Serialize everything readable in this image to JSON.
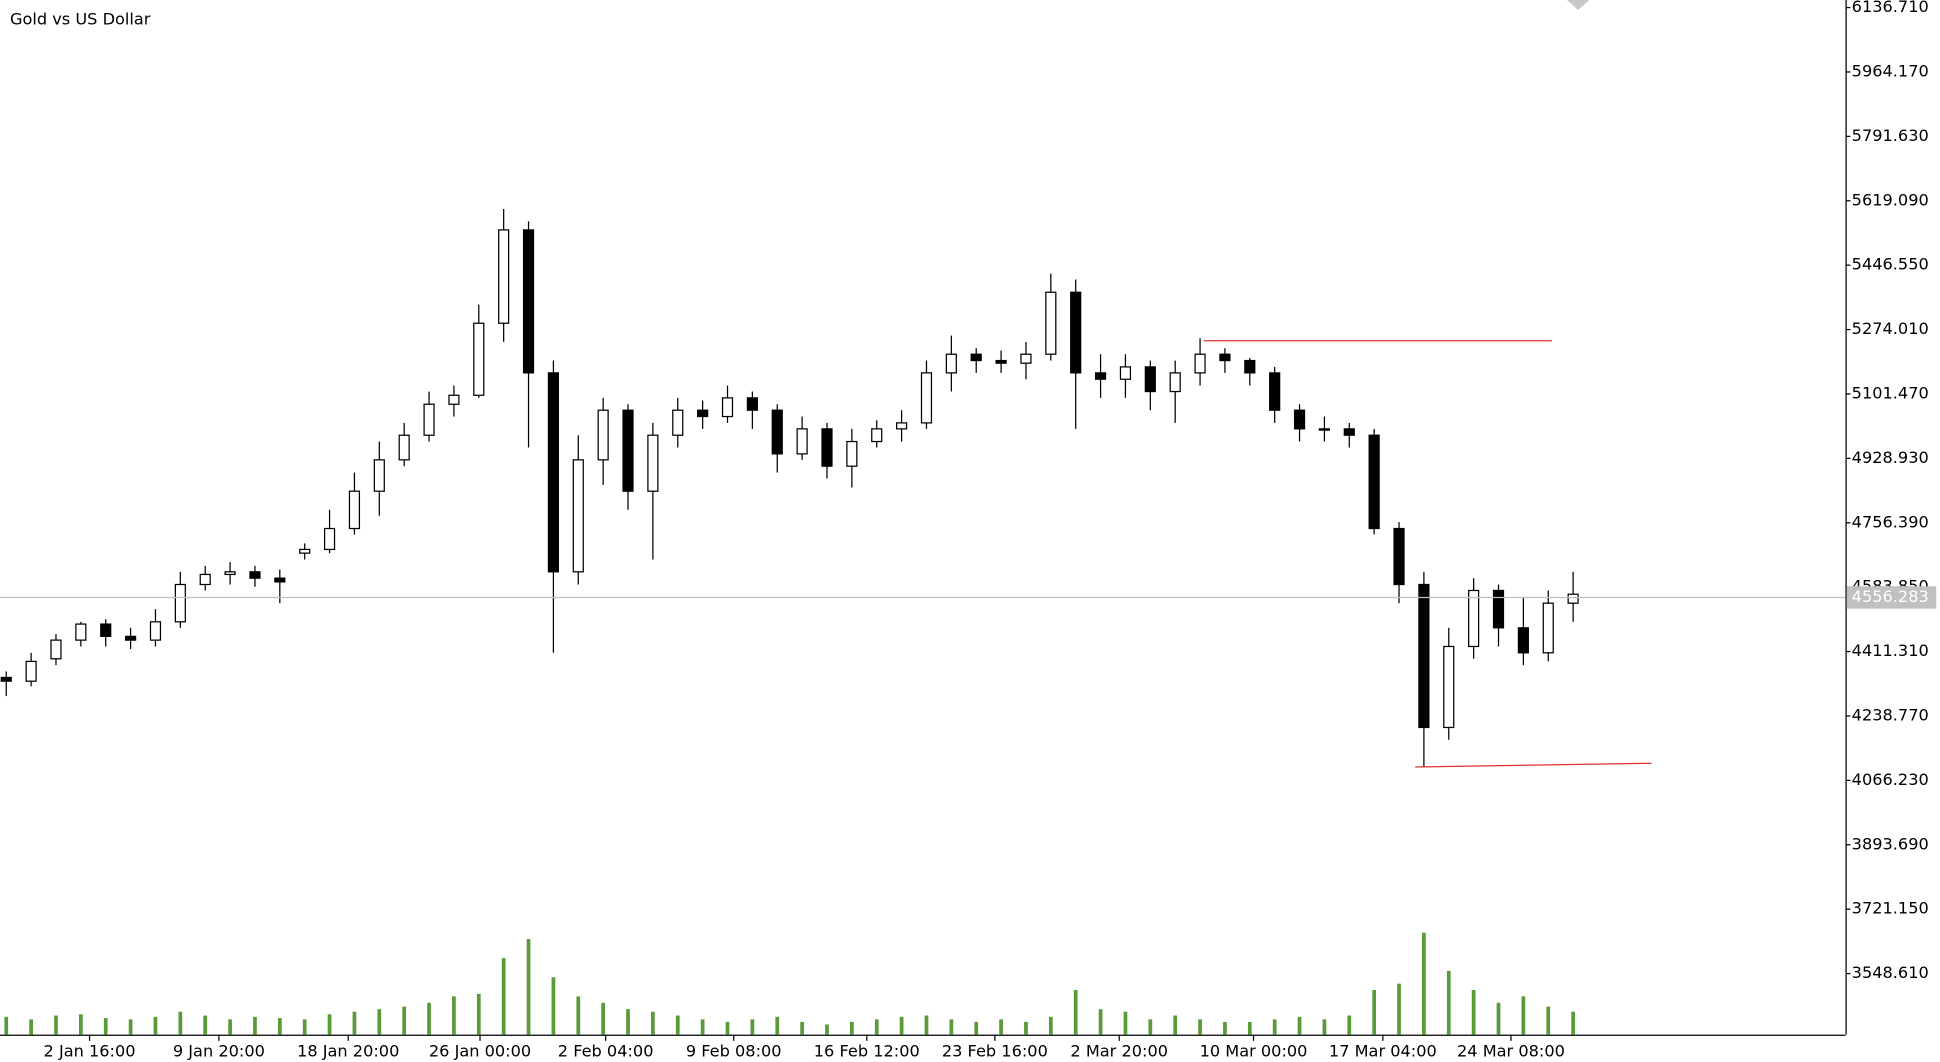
{
  "chart_data": {
    "type": "candlestick",
    "title": "Gold vs US Dollar",
    "open": [
      4342,
      4332,
      4392,
      4442,
      4485,
      4452,
      4442,
      4491,
      4591,
      4618,
      4625,
      4608,
      4675,
      4685,
      4741,
      4841,
      4925,
      4991,
      5074,
      5098,
      5291,
      5541,
      5158,
      4625,
      4925,
      5058,
      4841,
      4991,
      5058,
      5041,
      5091,
      5058,
      4941,
      5008,
      4908,
      4974,
      5008,
      5024,
      5158,
      5208,
      5191,
      5184,
      5208,
      5374,
      5158,
      5141,
      5174,
      5108,
      5158,
      5208,
      5191,
      5158,
      5058,
      5008,
      5008,
      4991,
      4741,
      4591,
      4208,
      4425,
      4575,
      4475,
      4408,
      4541
    ],
    "high": [
      4358,
      4408,
      4458,
      4491,
      4498,
      4475,
      4525,
      4625,
      4641,
      4651,
      4641,
      4631,
      4701,
      4791,
      4891,
      4974,
      5024,
      5108,
      5124,
      5341,
      5597,
      5564,
      5191,
      4991,
      5091,
      5074,
      5024,
      5091,
      5084,
      5124,
      5108,
      5074,
      5041,
      5024,
      5008,
      5031,
      5058,
      5191,
      5258,
      5224,
      5218,
      5241,
      5424,
      5408,
      5208,
      5208,
      5191,
      5191,
      5251,
      5224,
      5198,
      5174,
      5074,
      5041,
      5024,
      5008,
      4758,
      4625,
      4475,
      4608,
      4591,
      4558,
      4575,
      4625
    ],
    "low": [
      4292,
      4318,
      4375,
      4425,
      4425,
      4418,
      4425,
      4475,
      4575,
      4591,
      4585,
      4541,
      4658,
      4675,
      4725,
      4775,
      4908,
      4974,
      5041,
      5091,
      5241,
      4958,
      4408,
      4591,
      4858,
      4791,
      4658,
      4958,
      5008,
      5024,
      5008,
      4891,
      4925,
      4875,
      4851,
      4958,
      4974,
      5008,
      5108,
      5158,
      5158,
      5141,
      5191,
      5008,
      5091,
      5091,
      5058,
      5024,
      5124,
      5158,
      5124,
      5024,
      4974,
      4974,
      4958,
      4725,
      4541,
      4102,
      4175,
      4392,
      4425,
      4375,
      4385,
      4491
    ],
    "close": [
      4332,
      4385,
      4442,
      4485,
      4452,
      4442,
      4491,
      4591,
      4618,
      4625,
      4608,
      4598,
      4685,
      4741,
      4841,
      4925,
      4991,
      5074,
      5098,
      5291,
      5541,
      5158,
      4625,
      4925,
      5058,
      4841,
      4991,
      5058,
      5041,
      5091,
      5058,
      4941,
      5008,
      4908,
      4974,
      5008,
      5024,
      5158,
      5208,
      5191,
      5184,
      5208,
      5374,
      5158,
      5141,
      5174,
      5108,
      5158,
      5208,
      5191,
      5158,
      5058,
      5008,
      5008,
      4991,
      4741,
      4591,
      4208,
      4425,
      4575,
      4475,
      4408,
      4541,
      4565
    ],
    "volume": [
      14,
      12,
      15,
      16,
      13,
      12,
      14,
      18,
      15,
      12,
      14,
      13,
      12,
      16,
      18,
      20,
      22,
      25,
      30,
      32,
      60,
      75,
      45,
      30,
      25,
      20,
      18,
      15,
      12,
      10,
      12,
      14,
      10,
      8,
      10,
      12,
      14,
      15,
      12,
      10,
      12,
      10,
      14,
      35,
      20,
      18,
      12,
      15,
      12,
      10,
      10,
      12,
      14,
      12,
      15,
      35,
      40,
      80,
      50,
      35,
      25,
      30,
      22,
      18
    ],
    "ylim": [
      3385,
      6157
    ],
    "yticks": [
      {
        "value": 6136.71,
        "label": "6136.710"
      },
      {
        "value": 5964.17,
        "label": "5964.170"
      },
      {
        "value": 5791.63,
        "label": "5791.630"
      },
      {
        "value": 5619.09,
        "label": "5619.090"
      },
      {
        "value": 5446.55,
        "label": "5446.550"
      },
      {
        "value": 5274.01,
        "label": "5274.010"
      },
      {
        "value": 5101.47,
        "label": "5101.470"
      },
      {
        "value": 4928.93,
        "label": "4928.930"
      },
      {
        "value": 4756.39,
        "label": "4756.390"
      },
      {
        "value": 4583.85,
        "label": "4583.850"
      },
      {
        "value": 4411.31,
        "label": "4411.310"
      },
      {
        "value": 4238.77,
        "label": "4238.770"
      },
      {
        "value": 4066.23,
        "label": "4066.230"
      },
      {
        "value": 3893.69,
        "label": "3893.690"
      },
      {
        "value": 3721.15,
        "label": "3721.150"
      },
      {
        "value": 3548.61,
        "label": "3548.610"
      }
    ],
    "xlim": [
      -0.25,
      73.95
    ],
    "xticks": [
      {
        "value": 3.35,
        "label": "2 Jan 16:00"
      },
      {
        "value": 8.55,
        "label": "9 Jan 20:00"
      },
      {
        "value": 13.75,
        "label": "18 Jan 20:00"
      },
      {
        "value": 19.05,
        "label": "26 Jan 00:00"
      },
      {
        "value": 24.1,
        "label": "2 Feb 04:00"
      },
      {
        "value": 29.25,
        "label": "9 Feb 08:00"
      },
      {
        "value": 34.6,
        "label": "16 Feb 12:00"
      },
      {
        "value": 39.75,
        "label": "23 Feb 16:00"
      },
      {
        "value": 44.75,
        "label": "2 Mar 20:00"
      },
      {
        "value": 50.15,
        "label": "10 Mar 00:00"
      },
      {
        "value": 55.35,
        "label": "17 Mar 04:00"
      },
      {
        "value": 60.5,
        "label": "24 Mar 08:00"
      }
    ],
    "last_price": 4556.283,
    "trend_lines": [
      {
        "x": [
          48.15,
          62.15
        ],
        "y": [
          5244,
          5244
        ],
        "color": "#e03030"
      },
      {
        "x": [
          56.65,
          66.15
        ],
        "y": [
          4102,
          4112
        ],
        "color": "#e03030"
      }
    ],
    "up_color": "#ffffff",
    "down_color": "#000000",
    "volume_color": "#5a9a3a"
  }
}
